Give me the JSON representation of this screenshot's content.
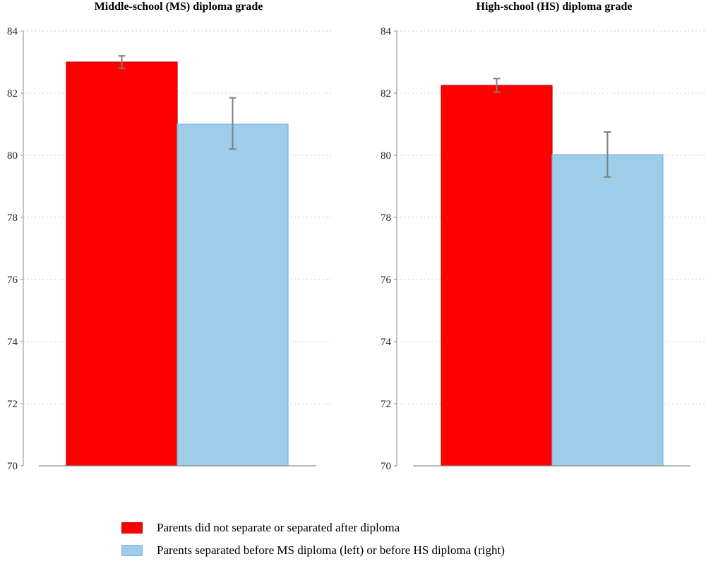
{
  "chart_data": [
    {
      "type": "bar",
      "title": "Middle-school (MS) diploma grade",
      "categories": [
        "Parents did not separate or separated after diploma",
        "Parents separated before MS diploma (left) or before HS diploma (right)"
      ],
      "values": [
        83.0,
        81.0
      ],
      "error_low": [
        82.8,
        80.2
      ],
      "error_high": [
        83.2,
        81.85
      ],
      "ylim": [
        70,
        84
      ],
      "yticks": [
        "70",
        "72",
        "74",
        "76",
        "78",
        "80",
        "82",
        "84"
      ],
      "grid": "horizontal dotted"
    },
    {
      "type": "bar",
      "title": "High-school (HS) diploma grade",
      "categories": [
        "Parents did not separate or separated after diploma",
        "Parents separated before MS diploma (left) or before HS diploma (right)"
      ],
      "values": [
        82.25,
        80.02
      ],
      "error_low": [
        82.03,
        79.3
      ],
      "error_high": [
        82.47,
        80.75
      ],
      "ylim": [
        70,
        84
      ],
      "yticks": [
        "70",
        "72",
        "74",
        "76",
        "78",
        "80",
        "82",
        "84"
      ],
      "grid": "horizontal dotted"
    }
  ],
  "legend": {
    "placement": "bottom",
    "items": [
      {
        "label": "Parents did not separate or separated after diploma",
        "color": "#ff0000",
        "border": "#c00000"
      },
      {
        "label": "Parents separated before MS diploma (left) or before HS diploma (right)",
        "color": "#9ecde9",
        "border": "#74b3dc"
      }
    ]
  },
  "colors": {
    "error_bar": "#7f7f7f",
    "grid": "#c8c8c8",
    "axis": "#8a8a8a"
  }
}
